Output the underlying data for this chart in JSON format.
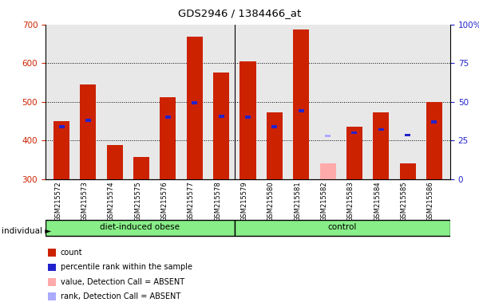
{
  "title": "GDS2946 / 1384466_at",
  "samples": [
    "GSM215572",
    "GSM215573",
    "GSM215574",
    "GSM215575",
    "GSM215576",
    "GSM215577",
    "GSM215578",
    "GSM215579",
    "GSM215580",
    "GSM215581",
    "GSM215582",
    "GSM215583",
    "GSM215584",
    "GSM215585",
    "GSM215586"
  ],
  "bar_bottom": 300,
  "count_values": [
    450,
    545,
    388,
    357,
    512,
    668,
    575,
    605,
    472,
    688,
    null,
    435,
    472,
    340,
    500
  ],
  "rank_values": [
    435,
    452,
    null,
    null,
    460,
    497,
    462,
    460,
    435,
    477,
    null,
    420,
    428,
    414,
    448
  ],
  "absent_count": [
    null,
    null,
    null,
    null,
    null,
    null,
    null,
    null,
    null,
    null,
    340,
    null,
    null,
    null,
    null
  ],
  "absent_rank": [
    null,
    null,
    null,
    null,
    null,
    null,
    null,
    null,
    null,
    null,
    412,
    null,
    null,
    null,
    null
  ],
  "count_color": "#cc2200",
  "rank_color": "#2222cc",
  "absent_count_color": "#ffaaaa",
  "absent_rank_color": "#aaaaff",
  "ylim": [
    300,
    700
  ],
  "yticks_left": [
    300,
    400,
    500,
    600,
    700
  ],
  "yticks_right": [
    0,
    25,
    50,
    75,
    100
  ],
  "plot_bg": "#e8e8e8",
  "grid_color": "black",
  "axis_color_left": "#cc2200",
  "axis_color_right": "#2222cc",
  "group_color": "#88ee88",
  "group_split": 6.5,
  "group1_label": "diet-induced obese",
  "group2_label": "control",
  "individual_label": "individual ►",
  "legend": [
    {
      "label": "count",
      "color": "#cc2200"
    },
    {
      "label": "percentile rank within the sample",
      "color": "#2222cc"
    },
    {
      "label": "value, Detection Call = ABSENT",
      "color": "#ffaaaa"
    },
    {
      "label": "rank, Detection Call = ABSENT",
      "color": "#aaaaff"
    }
  ]
}
